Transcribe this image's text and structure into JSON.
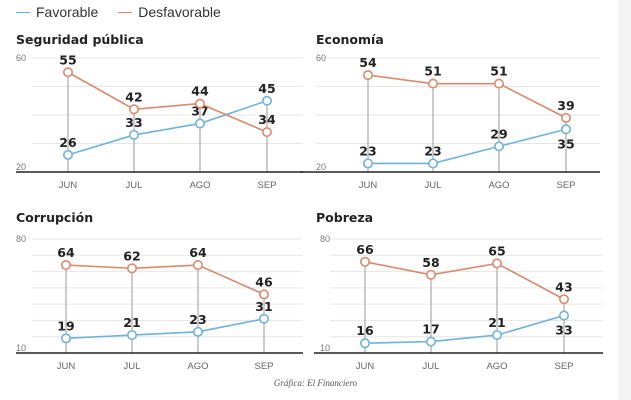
{
  "legend": {
    "items": [
      {
        "label": "Favorable",
        "color": "#6fb2dc"
      },
      {
        "label": "Desfavorable",
        "color": "#d98a6c"
      }
    ]
  },
  "caption": "Gráfica: El Financiero",
  "colors": {
    "favorable": "#6fb2dc",
    "desfavorable": "#d98a6c",
    "grid": "#e6e6e6",
    "axis": "#222222",
    "drop_line": "#9a9a9a"
  },
  "chart_data": [
    {
      "type": "line",
      "title": "Seguridad pública",
      "categories": [
        "JUN",
        "JUL",
        "AGO",
        "SEP"
      ],
      "ylim": [
        20,
        60
      ],
      "yticks_labeled": [
        60,
        20
      ],
      "grid_step": 10,
      "series": [
        {
          "name": "Favorable",
          "values": [
            26,
            33,
            37,
            45
          ],
          "label_pos": [
            "above",
            "above",
            "above",
            "above"
          ]
        },
        {
          "name": "Desfavorable",
          "values": [
            55,
            42,
            44,
            34
          ],
          "label_pos": [
            "above",
            "above",
            "above",
            "above"
          ]
        }
      ]
    },
    {
      "type": "line",
      "title": "Economía",
      "categories": [
        "JUN",
        "JUL",
        "AGO",
        "SEP"
      ],
      "ylim": [
        20,
        60
      ],
      "yticks_labeled": [
        60,
        20
      ],
      "grid_step": 10,
      "series": [
        {
          "name": "Favorable",
          "values": [
            23,
            23,
            29,
            35
          ],
          "label_pos": [
            "above",
            "above",
            "above",
            "below"
          ]
        },
        {
          "name": "Desfavorable",
          "values": [
            54,
            51,
            51,
            39
          ],
          "label_pos": [
            "above",
            "above",
            "above",
            "above"
          ]
        }
      ]
    },
    {
      "type": "line",
      "title": "Corrupción",
      "categories": [
        "JUN",
        "JUL",
        "AGO",
        "SEP"
      ],
      "ylim": [
        10,
        80
      ],
      "yticks_labeled": [
        80,
        10
      ],
      "grid_step": 10,
      "series": [
        {
          "name": "Favorable",
          "values": [
            19,
            21,
            23,
            31
          ],
          "label_pos": [
            "above",
            "above",
            "above",
            "above"
          ]
        },
        {
          "name": "Desfavorable",
          "values": [
            64,
            62,
            64,
            46
          ],
          "label_pos": [
            "above",
            "above",
            "above",
            "above"
          ]
        }
      ]
    },
    {
      "type": "line",
      "title": "Pobreza",
      "categories": [
        "JUN",
        "JUL",
        "AGO",
        "SEP"
      ],
      "ylim": [
        10,
        80
      ],
      "yticks_labeled": [
        80,
        10
      ],
      "grid_step": 10,
      "series": [
        {
          "name": "Favorable",
          "values": [
            16,
            17,
            21,
            33
          ],
          "label_pos": [
            "above",
            "above",
            "above",
            "below"
          ]
        },
        {
          "name": "Desfavorable",
          "values": [
            66,
            58,
            65,
            43
          ],
          "label_pos": [
            "above",
            "above",
            "above",
            "above"
          ]
        }
      ]
    }
  ]
}
